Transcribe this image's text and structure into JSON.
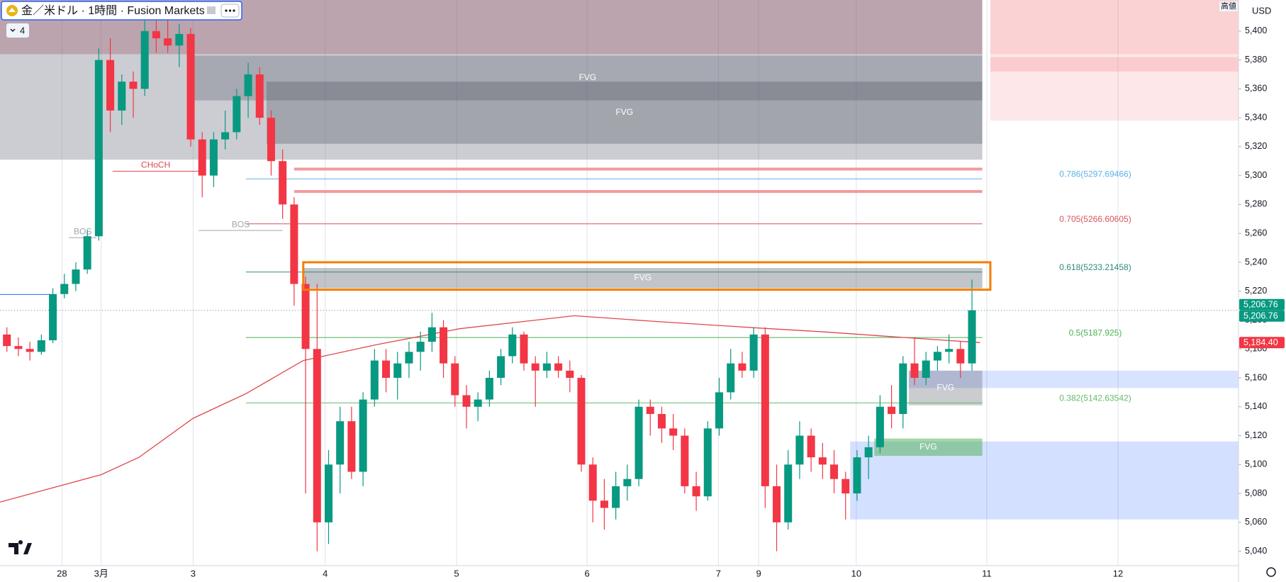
{
  "header": {
    "symbol": "金／米ドル · 1時間 · Fusion Markets",
    "indicators": 4
  },
  "chart_data": {
    "type": "candlestick",
    "currency": "USD",
    "high_label": "高値",
    "up_color": "#089981",
    "down_color": "#f23645",
    "open": [
      5190,
      5182,
      5180,
      5178,
      5186,
      5218,
      5225,
      5235,
      5258,
      5380,
      5345,
      5365,
      5360,
      5400,
      5395,
      5390,
      5398,
      5325,
      5300,
      5325,
      5330,
      5355,
      5370,
      5340,
      5310,
      5280,
      5225,
      5180,
      5060,
      5100,
      5130,
      5095,
      5145,
      5172,
      5160,
      5170,
      5178,
      5185,
      5195,
      5170,
      5148,
      5140,
      5145,
      5160,
      5175,
      5190,
      5170,
      5165,
      5170,
      5165,
      5160,
      5100,
      5075,
      5070,
      5085,
      5090,
      5140,
      5135,
      5125,
      5120,
      5085,
      5078,
      5125,
      5150,
      5170,
      5165,
      5190,
      5085,
      5060,
      5100,
      5120,
      5105,
      5100,
      5090,
      5080,
      5105,
      5112,
      5140,
      5135,
      5170,
      5160,
      5172,
      5178,
      5180,
      5170
    ],
    "high": [
      5195,
      5188,
      5185,
      5190,
      5222,
      5232,
      5240,
      5262,
      5388,
      5395,
      5370,
      5372,
      5415,
      5412,
      5410,
      5405,
      5402,
      5330,
      5330,
      5345,
      5360,
      5378,
      5375,
      5345,
      5318,
      5285,
      5230,
      5225,
      5110,
      5140,
      5140,
      5150,
      5180,
      5180,
      5178,
      5185,
      5192,
      5205,
      5200,
      5175,
      5155,
      5150,
      5165,
      5180,
      5195,
      5192,
      5175,
      5178,
      5175,
      5172,
      5162,
      5105,
      5090,
      5095,
      5100,
      5145,
      5145,
      5140,
      5135,
      5125,
      5095,
      5130,
      5160,
      5180,
      5178,
      5195,
      5195,
      5100,
      5110,
      5130,
      5125,
      5115,
      5110,
      5095,
      5110,
      5120,
      5148,
      5155,
      5175,
      5188,
      5178,
      5182,
      5190,
      5185,
      5228
    ],
    "low": [
      5178,
      5175,
      5172,
      5176,
      5184,
      5215,
      5220,
      5232,
      5255,
      5330,
      5335,
      5340,
      5355,
      5385,
      5385,
      5375,
      5320,
      5285,
      5292,
      5318,
      5325,
      5340,
      5335,
      5300,
      5270,
      5210,
      5080,
      5040,
      5045,
      5080,
      5090,
      5085,
      5140,
      5150,
      5145,
      5160,
      5165,
      5178,
      5160,
      5140,
      5125,
      5130,
      5140,
      5155,
      5170,
      5165,
      5140,
      5160,
      5160,
      5150,
      5095,
      5060,
      5055,
      5062,
      5075,
      5085,
      5120,
      5115,
      5110,
      5080,
      5068,
      5075,
      5120,
      5145,
      5160,
      5160,
      5070,
      5040,
      5055,
      5090,
      5095,
      5090,
      5080,
      5062,
      5075,
      5090,
      5108,
      5125,
      5125,
      5155,
      5155,
      5165,
      5170,
      5160,
      5165
    ],
    "close": [
      5182,
      5180,
      5178,
      5186,
      5218,
      5225,
      5235,
      5258,
      5380,
      5345,
      5365,
      5360,
      5400,
      5395,
      5390,
      5398,
      5325,
      5300,
      5325,
      5330,
      5355,
      5370,
      5340,
      5310,
      5280,
      5225,
      5180,
      5060,
      5100,
      5130,
      5095,
      5145,
      5172,
      5160,
      5170,
      5178,
      5185,
      5195,
      5170,
      5148,
      5140,
      5145,
      5160,
      5175,
      5190,
      5170,
      5165,
      5170,
      5165,
      5160,
      5100,
      5075,
      5070,
      5085,
      5090,
      5140,
      5135,
      5125,
      5120,
      5085,
      5078,
      5125,
      5150,
      5170,
      5165,
      5190,
      5085,
      5060,
      5100,
      5120,
      5105,
      5100,
      5090,
      5080,
      5105,
      5112,
      5140,
      5135,
      5170,
      5160,
      5172,
      5178,
      5180,
      5170,
      5206.76
    ],
    "xlim": [
      -0.6,
      107.2
    ],
    "xticks": [
      {
        "value": 4.79,
        "label": "28"
      },
      {
        "value": 8.21,
        "label": "3月"
      },
      {
        "value": 16.21,
        "label": "3"
      },
      {
        "value": 27.71,
        "label": "4"
      },
      {
        "value": 39.14,
        "label": "5"
      },
      {
        "value": 50.5,
        "label": "6"
      },
      {
        "value": 61.93,
        "label": "7"
      },
      {
        "value": 65.43,
        "label": "9"
      },
      {
        "value": 73.93,
        "label": "10"
      },
      {
        "value": 85.29,
        "label": "11"
      },
      {
        "value": 96.71,
        "label": "12"
      }
    ],
    "ylim": [
      5030,
      5421.5
    ],
    "yticks": [
      {
        "value": 5040,
        "label": "5,040"
      },
      {
        "value": 5060,
        "label": "5,060"
      },
      {
        "value": 5080,
        "label": "5,080"
      },
      {
        "value": 5100,
        "label": "5,100"
      },
      {
        "value": 5120,
        "label": "5,120"
      },
      {
        "value": 5140,
        "label": "5,140"
      },
      {
        "value": 5160,
        "label": "5,160"
      },
      {
        "value": 5180,
        "label": "5,180"
      },
      {
        "value": 5200,
        "label": "5,200"
      },
      {
        "value": 5220,
        "label": "5,220"
      },
      {
        "value": 5240,
        "label": "5,240"
      },
      {
        "value": 5260,
        "label": "5,260"
      },
      {
        "value": 5280,
        "label": "5,280"
      },
      {
        "value": 5300,
        "label": "5,300"
      },
      {
        "value": 5320,
        "label": "5,320"
      },
      {
        "value": 5340,
        "label": "5,340"
      },
      {
        "value": 5360,
        "label": "5,360"
      },
      {
        "value": 5380,
        "label": "5,380"
      },
      {
        "value": 5400,
        "label": "5,400"
      }
    ],
    "ma": {
      "color": "#e0474c",
      "x": [
        -0.6,
        8.2,
        11.5,
        16.2,
        20.8,
        25.8,
        32.2,
        39.4,
        49.4,
        56.5,
        65.4,
        70.8,
        77.9,
        84.7
      ],
      "values": [
        5074,
        5093,
        5105,
        5132,
        5149,
        5172,
        5183,
        5194,
        5203,
        5199,
        5194.5,
        5192,
        5188,
        5184.4
      ]
    },
    "zones": [
      {
        "x": [
          -0.6,
          84.9
        ],
        "prices": [
          5311,
          5421.5
        ],
        "color": "rgba(120,124,140,0.38)"
      },
      {
        "x": [
          -0.6,
          84.9
        ],
        "prices": [
          5384,
          5421.5
        ],
        "color": "rgba(150,70,85,0.30)"
      },
      {
        "x": [
          16.2,
          84.9
        ],
        "prices": [
          5352,
          5383
        ],
        "color": "rgba(80,85,100,0.30)",
        "label": "FVG"
      },
      {
        "x": [
          22.6,
          84.9
        ],
        "prices": [
          5322,
          5365
        ],
        "color": "rgba(70,72,85,0.30)",
        "label": "FVG"
      },
      {
        "x": [
          85.6,
          107.2
        ],
        "prices": [
          5338,
          5421.5
        ],
        "color": "rgba(242,54,69,0.12)"
      },
      {
        "x": [
          85.6,
          107.2
        ],
        "prices": [
          5384,
          5421.5
        ],
        "color": "rgba(242,54,69,0.12)"
      },
      {
        "x": [
          85.6,
          107.2
        ],
        "prices": [
          5372,
          5382
        ],
        "color": "rgba(242,54,69,0.15)"
      },
      {
        "x": [
          25.8,
          84.9
        ],
        "prices": [
          5222,
          5236
        ],
        "color": "rgba(80,85,100,0.35)",
        "label": "FVG"
      },
      {
        "x": [
          78.5,
          107.2
        ],
        "prices": [
          5153,
          5165
        ],
        "color": "rgba(41,98,255,0.18)"
      },
      {
        "x": [
          78.5,
          84.9
        ],
        "prices": [
          5141,
          5165
        ],
        "color": "rgba(80,85,100,0.30)",
        "label": "FVG"
      },
      {
        "x": [
          73.4,
          107.2
        ],
        "prices": [
          5062,
          5116
        ],
        "color": "rgba(41,98,255,0.20)"
      },
      {
        "x": [
          75.5,
          84.9
        ],
        "prices": [
          5106,
          5118
        ],
        "color": "rgba(76,175,80,0.50)",
        "label": "FVG"
      }
    ],
    "highlight": {
      "x": [
        25.8,
        85.6
      ],
      "prices": [
        5221,
        5240
      ],
      "color": "#f57c00"
    },
    "levels": [
      {
        "x": [
          25,
          84.9
        ],
        "price": 5304.5,
        "color": "#ef9aa0",
        "width": 4
      },
      {
        "x": [
          25,
          84.9
        ],
        "price": 5289,
        "color": "#ef9aa0",
        "width": 4
      },
      {
        "x": [
          -0.6,
          3.8
        ],
        "price": 5217.7,
        "color": "#2962ff",
        "width": 1
      },
      {
        "x": [
          -0.6,
          107.2
        ],
        "price": 5206.76,
        "color": "#5d8f8a",
        "width": 1,
        "dash": true
      }
    ],
    "fib": [
      {
        "x": [
          20.8,
          84.9
        ],
        "price": 5297.69466,
        "color": "#5eb1e6",
        "label": "0.786(5297.69466)"
      },
      {
        "x": [
          20.8,
          84.9
        ],
        "price": 5266.60605,
        "color": "#d9535b",
        "label": "0.705(5266.60605)"
      },
      {
        "x": [
          20.8,
          84.9
        ],
        "price": 5233.21458,
        "color": "#2e8b7a",
        "label": "0.618(5233.21458)"
      },
      {
        "x": [
          20.8,
          84.9
        ],
        "price": 5187.925,
        "color": "#4caf50",
        "label": "0.5(5187.925)"
      },
      {
        "x": [
          20.8,
          84.9
        ],
        "price": 5142.63542,
        "color": "#66bb6a",
        "label": "0.382(5142.63542)"
      }
    ],
    "structure": [
      {
        "x": [
          9.2,
          16.7
        ],
        "price": 5303,
        "color": "#e0474c",
        "label": "CHoCH"
      },
      {
        "x": [
          5.4,
          7.8
        ],
        "price": 5257,
        "color": "#a0a4ad",
        "label": "BOS"
      },
      {
        "x": [
          16.7,
          24
        ],
        "price": 5262,
        "color": "#a0a4ad",
        "label": "BOS"
      }
    ],
    "price_labels": [
      {
        "value": 5206.76,
        "label": "5,206.76",
        "color": "#089981"
      },
      {
        "value": 5206.76,
        "label": "5,206.76",
        "color": "#089981"
      },
      {
        "value": 5184.4,
        "label": "5,184.40",
        "color": "#f23645"
      }
    ]
  }
}
